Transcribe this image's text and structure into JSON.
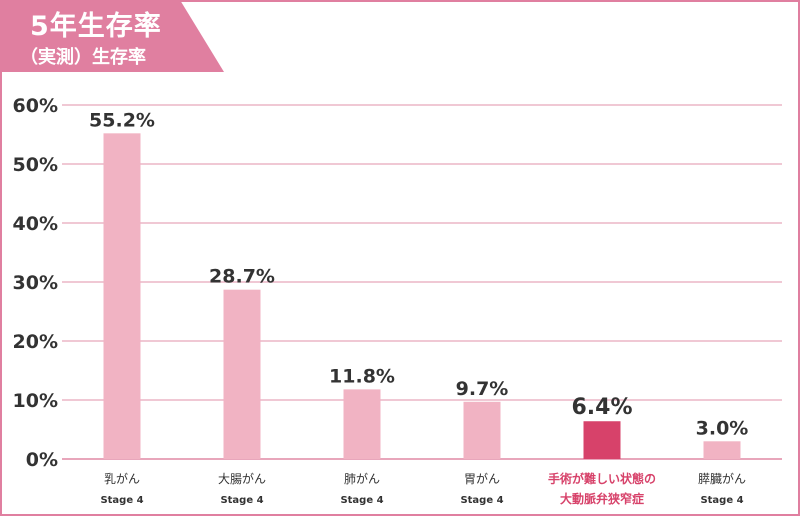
{
  "header": {
    "title": "5年生存率",
    "subtitle": "（実測）生存率"
  },
  "colors": {
    "accent": "#e07fa0",
    "bar": "#f1b3c3",
    "highlight_bar": "#d7426a",
    "highlight_text": "#d7426a",
    "grid": "#e8a6bb",
    "text": "#333333"
  },
  "chart_data": {
    "type": "bar",
    "categories": [
      {
        "name": "乳がん",
        "sub": "Stage 4",
        "highlight": false
      },
      {
        "name": "大腸がん",
        "sub": "Stage 4",
        "highlight": false
      },
      {
        "name": "肺がん",
        "sub": "Stage 4",
        "highlight": false
      },
      {
        "name": "胃がん",
        "sub": "Stage 4",
        "highlight": false
      },
      {
        "name": "手術が難しい状態の",
        "sub": "大動脈弁狭窄症",
        "highlight": true
      },
      {
        "name": "膵臓がん",
        "sub": "Stage 4",
        "highlight": false
      }
    ],
    "values": [
      55.2,
      28.7,
      11.8,
      9.7,
      6.4,
      3.0
    ],
    "value_labels": [
      "55.2%",
      "28.7%",
      "11.8%",
      "9.7%",
      "6.4%",
      "3.0%"
    ],
    "yticks": [
      "0%",
      "10%",
      "20%",
      "30%",
      "40%",
      "50%",
      "60%"
    ],
    "ylim": [
      0,
      60
    ],
    "grid": true,
    "xlabel": "",
    "ylabel": ""
  }
}
